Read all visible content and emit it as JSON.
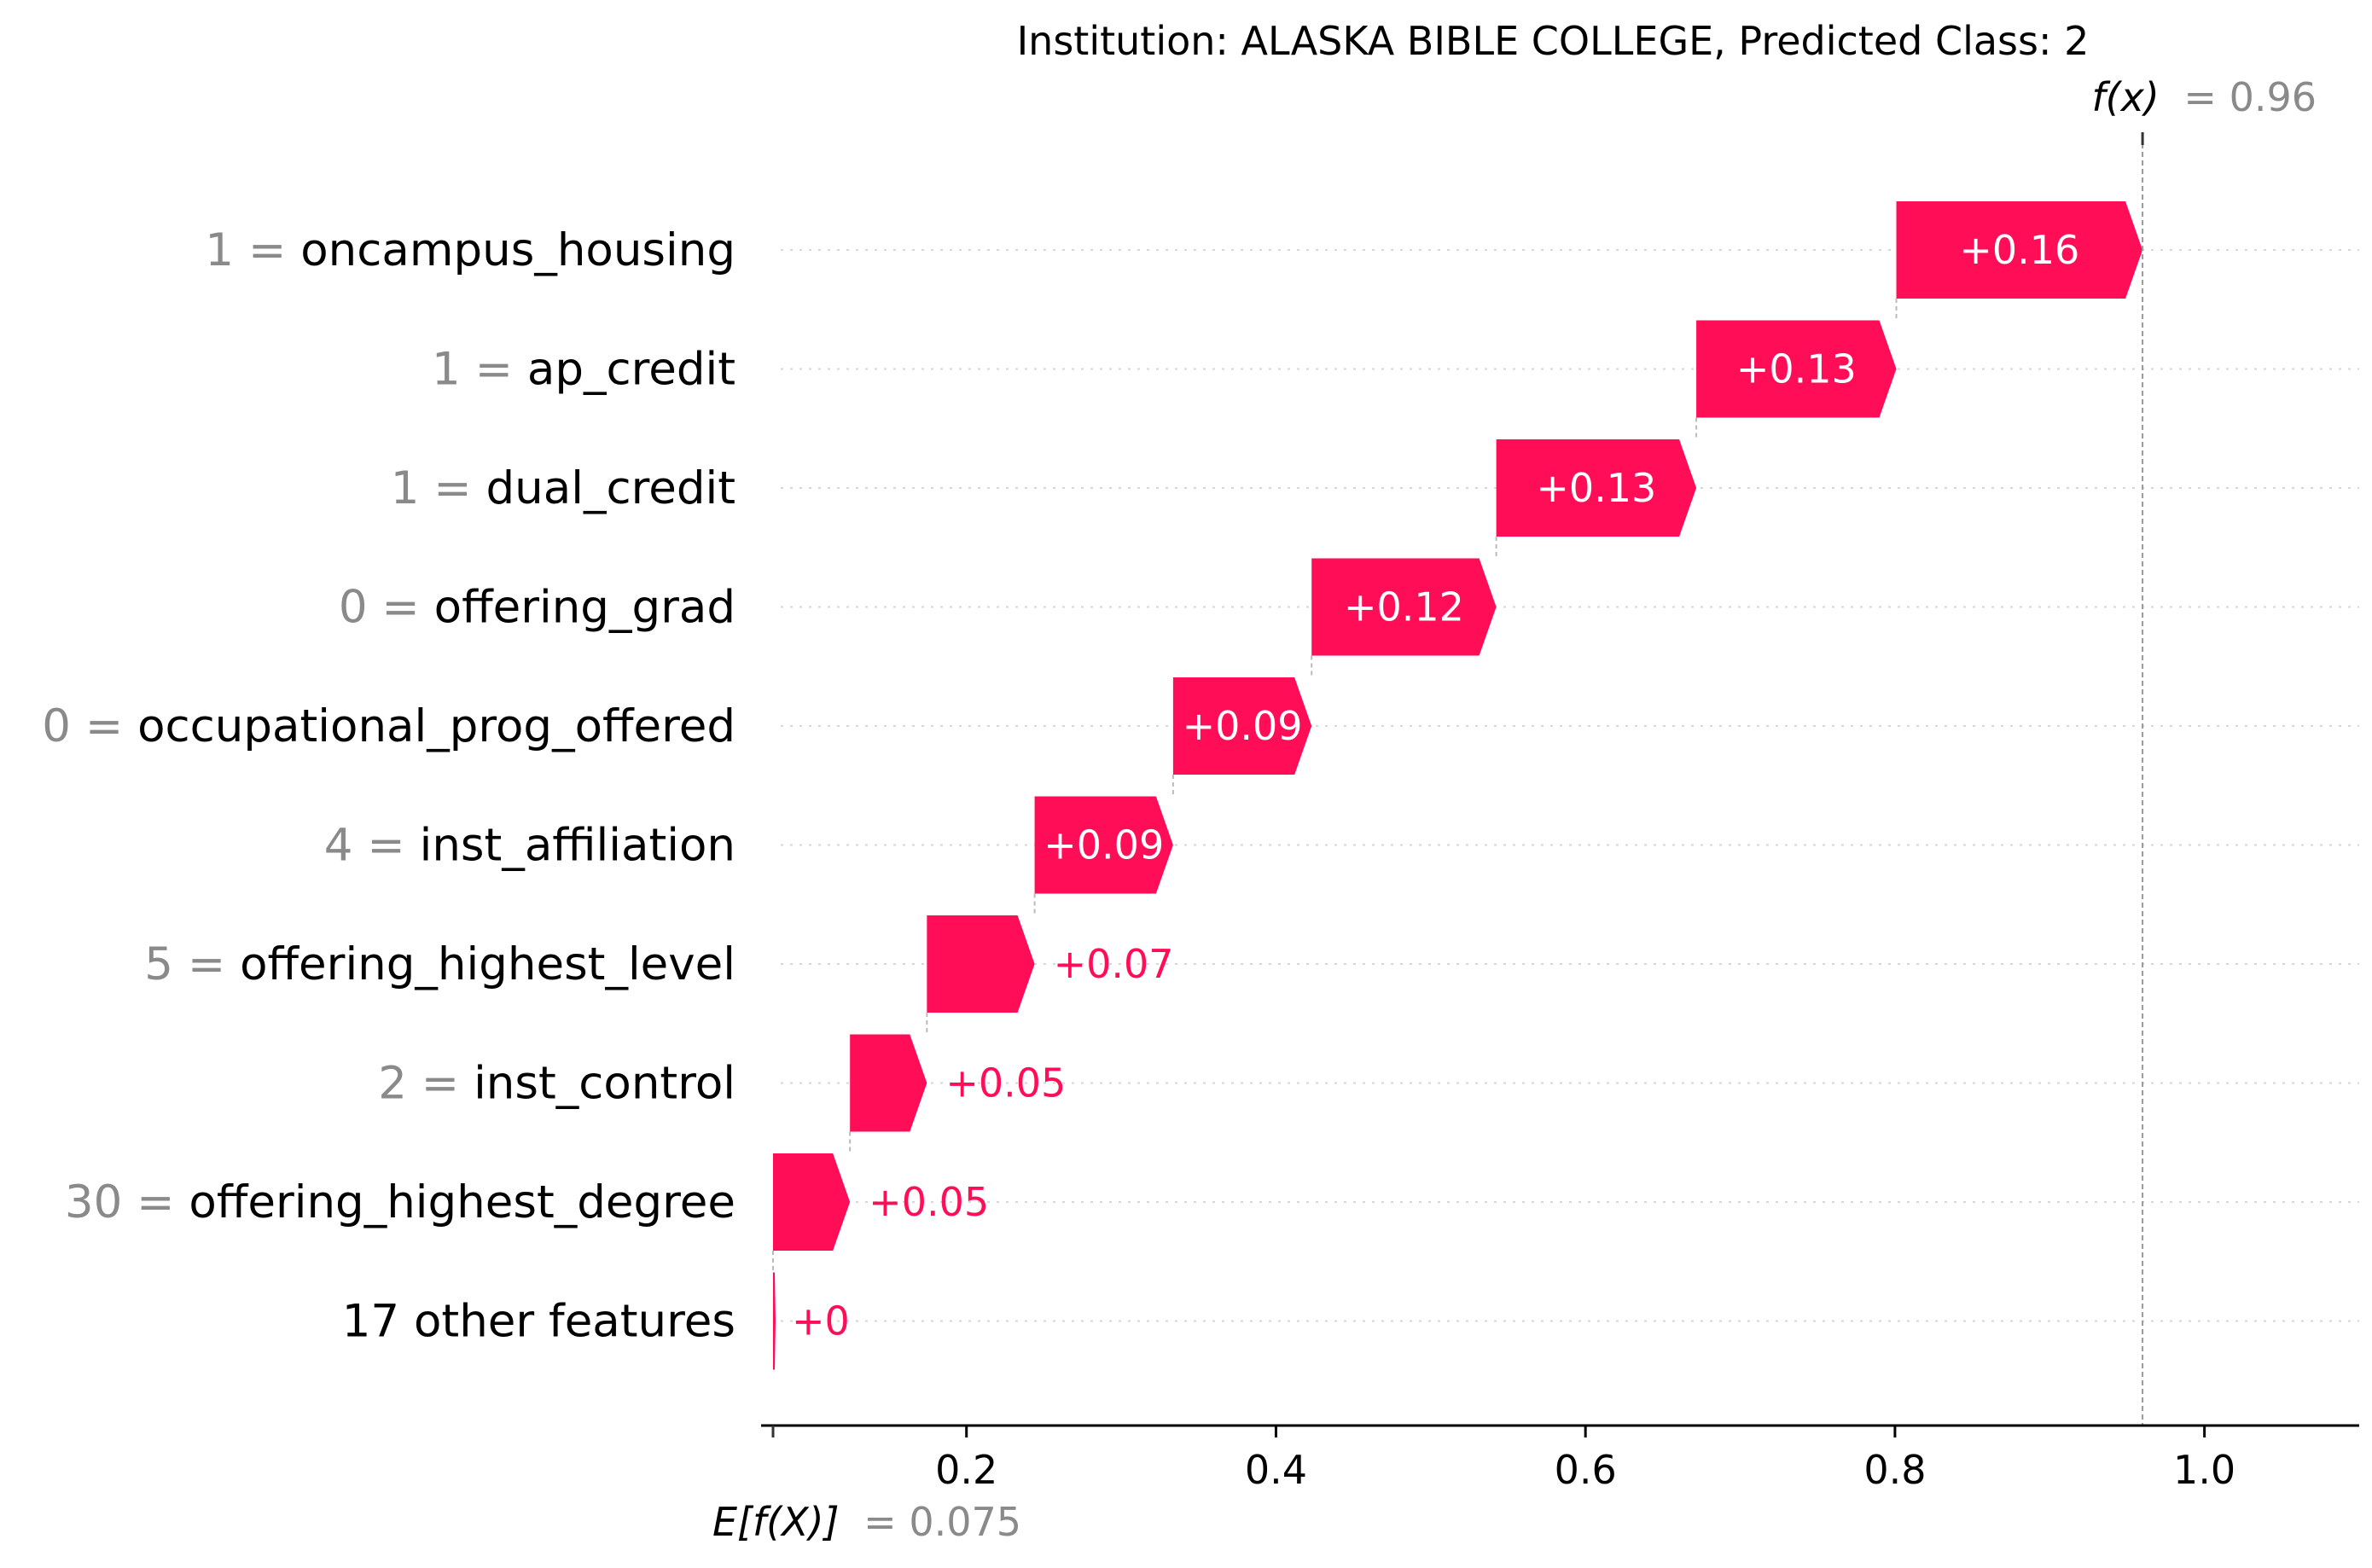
{
  "colors": {
    "positive": "#ff0d57",
    "grid": "#d6d6d6",
    "muted": "#8a8a8a"
  },
  "chart_data": {
    "type": "waterfall",
    "title": "Institution: ALASKA BIBLE COLLEGE, Predicted Class: 2",
    "base_value": 0.075,
    "base_label": "E[f(X)]",
    "base_value_text": "= 0.075",
    "output_value": 0.96,
    "output_label": "f(x)",
    "output_value_text": "= 0.96",
    "xlim": [
      0.075,
      1.1
    ],
    "xticks": [
      0.2,
      0.4,
      0.6,
      0.8,
      1.0
    ],
    "xtick_labels": [
      "0.2",
      "0.4",
      "0.6",
      "0.8",
      "1.0"
    ],
    "features": [
      {
        "value": "1",
        "name": "oncampus_housing",
        "contribution": 0.16,
        "label": "+0.16"
      },
      {
        "value": "1",
        "name": "ap_credit",
        "contribution": 0.13,
        "label": "+0.13"
      },
      {
        "value": "1",
        "name": "dual_credit",
        "contribution": 0.13,
        "label": "+0.13"
      },
      {
        "value": "0",
        "name": "offering_grad",
        "contribution": 0.12,
        "label": "+0.12"
      },
      {
        "value": "0",
        "name": "occupational_prog_offered",
        "contribution": 0.09,
        "label": "+0.09"
      },
      {
        "value": "4",
        "name": "inst_affiliation",
        "contribution": 0.09,
        "label": "+0.09"
      },
      {
        "value": "5",
        "name": "offering_highest_level",
        "contribution": 0.07,
        "label": "+0.07"
      },
      {
        "value": "2",
        "name": "inst_control",
        "contribution": 0.05,
        "label": "+0.05"
      },
      {
        "value": "30",
        "name": "offering_highest_degree",
        "contribution": 0.05,
        "label": "+0.05"
      },
      {
        "value": "",
        "name": "17 other features",
        "contribution": 0.0,
        "label": "+0"
      }
    ]
  }
}
